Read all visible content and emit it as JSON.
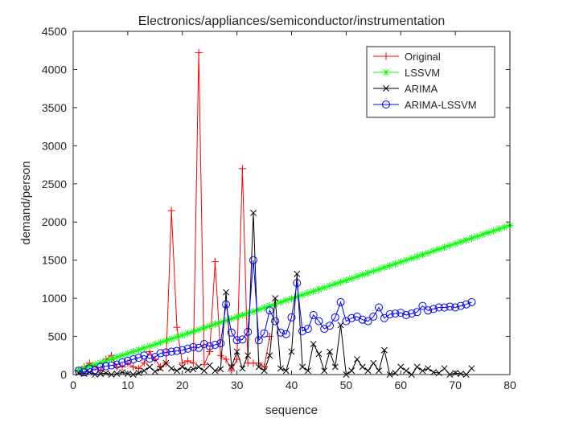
{
  "chart_data": {
    "type": "line",
    "title": "Electronics/appliances/semiconductor/instrumentation",
    "xlabel": "sequence",
    "ylabel": "demand/person",
    "xlim": [
      0,
      80
    ],
    "ylim": [
      0,
      4500
    ],
    "xticks": [
      0,
      10,
      20,
      30,
      40,
      50,
      60,
      70,
      80
    ],
    "yticks": [
      0,
      500,
      1000,
      1500,
      2000,
      2500,
      3000,
      3500,
      4000,
      4500
    ],
    "grid": false,
    "legend_position": "top-right",
    "series": [
      {
        "name": "Original",
        "color": "#ff0000",
        "marker": "plus",
        "x": [
          1,
          2,
          3,
          4,
          5,
          6,
          7,
          8,
          9,
          10,
          11,
          12,
          13,
          14,
          15,
          16,
          17,
          18,
          19,
          20,
          21,
          22,
          23,
          24,
          25,
          26,
          27,
          28,
          29,
          30,
          31,
          32,
          33,
          34,
          35,
          36
        ],
        "values": [
          50,
          100,
          150,
          100,
          50,
          200,
          250,
          100,
          100,
          150,
          100,
          80,
          150,
          300,
          200,
          100,
          150,
          2150,
          620,
          150,
          180,
          150,
          4220,
          130,
          300,
          1480,
          250,
          200,
          50,
          200,
          2700,
          150,
          150,
          150,
          100,
          500
        ]
      },
      {
        "name": "LSSVM",
        "color": "#00ff00",
        "marker": "star",
        "x": [
          1,
          2,
          3,
          4,
          5,
          6,
          7,
          8,
          9,
          10,
          11,
          12,
          13,
          14,
          15,
          16,
          17,
          18,
          19,
          20,
          21,
          22,
          23,
          24,
          25,
          26,
          27,
          28,
          29,
          30,
          31,
          32,
          33,
          34,
          35,
          36,
          37,
          38,
          39,
          40,
          41,
          42,
          43,
          44,
          45,
          46,
          47,
          48,
          49,
          50,
          51,
          52,
          53,
          54,
          55,
          56,
          57,
          58,
          59,
          60,
          61,
          62,
          63,
          64,
          65,
          66,
          67,
          68,
          69,
          70,
          71,
          72,
          73,
          74,
          75,
          76,
          77,
          78,
          79,
          80
        ],
        "values": [
          60,
          84,
          108,
          132,
          156,
          180,
          204,
          228,
          252,
          276,
          300,
          324,
          348,
          372,
          396,
          420,
          444,
          468,
          492,
          516,
          540,
          564,
          588,
          612,
          636,
          660,
          684,
          708,
          732,
          756,
          780,
          804,
          828,
          852,
          876,
          900,
          924,
          948,
          972,
          996,
          1020,
          1044,
          1068,
          1092,
          1116,
          1140,
          1164,
          1188,
          1212,
          1236,
          1260,
          1284,
          1308,
          1332,
          1356,
          1380,
          1404,
          1428,
          1452,
          1476,
          1500,
          1524,
          1548,
          1572,
          1596,
          1620,
          1644,
          1668,
          1692,
          1716,
          1740,
          1764,
          1788,
          1812,
          1836,
          1860,
          1884,
          1908,
          1932,
          1956
        ]
      },
      {
        "name": "ARIMA",
        "color": "#000000",
        "marker": "x",
        "x": [
          1,
          2,
          3,
          4,
          5,
          6,
          7,
          8,
          9,
          10,
          11,
          12,
          13,
          14,
          15,
          16,
          17,
          18,
          19,
          20,
          21,
          22,
          23,
          24,
          25,
          26,
          27,
          28,
          29,
          30,
          31,
          32,
          33,
          34,
          35,
          36,
          37,
          38,
          39,
          40,
          41,
          42,
          43,
          44,
          45,
          46,
          47,
          48,
          49,
          50,
          51,
          52,
          53,
          54,
          55,
          56,
          57,
          58,
          59,
          60,
          61,
          62,
          63,
          64,
          65,
          66,
          67,
          68,
          69,
          70,
          71,
          72,
          73
        ],
        "values": [
          20,
          10,
          30,
          0,
          10,
          20,
          0,
          10,
          30,
          10,
          0,
          20,
          50,
          100,
          40,
          80,
          150,
          80,
          50,
          100,
          60,
          70,
          100,
          50,
          120,
          50,
          70,
          1080,
          100,
          300,
          80,
          250,
          2120,
          100,
          50,
          250,
          1000,
          80,
          50,
          300,
          1320,
          100,
          50,
          400,
          270,
          50,
          300,
          100,
          650,
          0,
          50,
          200,
          100,
          50,
          150,
          50,
          320,
          0,
          20,
          100,
          50,
          0,
          100,
          50,
          80,
          30,
          20,
          80,
          0,
          20,
          10,
          0,
          80
        ]
      },
      {
        "name": "ARIMA-LSSVM",
        "color": "#0000ff",
        "marker": "circle",
        "x": [
          1,
          2,
          3,
          4,
          5,
          6,
          7,
          8,
          9,
          10,
          11,
          12,
          13,
          14,
          15,
          16,
          17,
          18,
          19,
          20,
          21,
          22,
          23,
          24,
          25,
          26,
          27,
          28,
          29,
          30,
          31,
          32,
          33,
          34,
          35,
          36,
          37,
          38,
          39,
          40,
          41,
          42,
          43,
          44,
          45,
          46,
          47,
          48,
          49,
          50,
          51,
          52,
          53,
          54,
          55,
          56,
          57,
          58,
          59,
          60,
          61,
          62,
          63,
          64,
          65,
          66,
          67,
          68,
          69,
          70,
          71,
          72,
          73
        ],
        "values": [
          50,
          30,
          80,
          60,
          100,
          110,
          120,
          130,
          160,
          180,
          200,
          220,
          250,
          210,
          230,
          280,
          290,
          300,
          310,
          320,
          340,
          360,
          350,
          400,
          370,
          390,
          410,
          920,
          550,
          450,
          460,
          560,
          1500,
          450,
          540,
          840,
          700,
          550,
          530,
          750,
          1200,
          570,
          600,
          780,
          700,
          600,
          640,
          750,
          950,
          700,
          740,
          760,
          720,
          700,
          760,
          880,
          740,
          790,
          800,
          810,
          780,
          800,
          820,
          900,
          840,
          860,
          880,
          880,
          890,
          880,
          900,
          920,
          950
        ]
      }
    ]
  }
}
